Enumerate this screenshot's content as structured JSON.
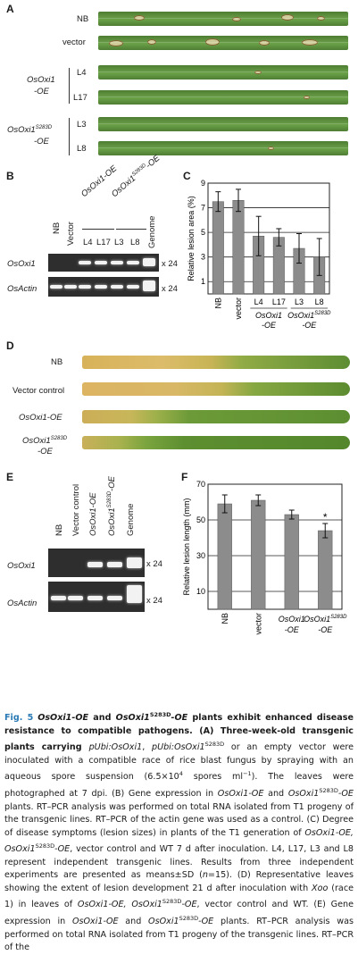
{
  "panel_letters": [
    "A",
    "B",
    "C",
    "D",
    "E",
    "F"
  ],
  "panelA": {
    "rows": [
      {
        "label": "NB"
      },
      {
        "label": "vector"
      },
      {
        "label": "L4"
      },
      {
        "label": "L17"
      },
      {
        "label": "L3"
      },
      {
        "label": "L8"
      }
    ],
    "group1": [
      "OsOxi1",
      "-OE"
    ],
    "group2_main": "OsOxi1",
    "group2_sup": "S283D",
    "group2_suffix": "-OE"
  },
  "panelB": {
    "group_oe": "OsOxi1-OE",
    "group_s283d_main": "OsOxi1",
    "group_s283d_sup": "S283D",
    "group_s283d_suffix": "-OE",
    "lanes": [
      "NB",
      "Vector",
      "L4",
      "L17",
      "L3",
      "L8",
      "Genome"
    ],
    "gene1": "OsOxi1",
    "gene2": "OsActin",
    "cycles1": "x 24",
    "cycles2": "x 24"
  },
  "panelE": {
    "lanes": [
      "NB",
      "Vector control",
      "OsOxi1-OE",
      "OsOxi1S283D-OE",
      "Genome"
    ],
    "gene1": "OsOxi1",
    "gene2": "OsActin",
    "cycles1": "x 24",
    "cycles2": "x 24"
  },
  "panelD": {
    "rows": [
      {
        "label": "NB"
      },
      {
        "label": "Vector control"
      },
      {
        "label": "OsOxi1-OE"
      },
      {
        "label_main": "OsOxi1",
        "label_sup": "S283D",
        "label_suffix": "-OE"
      }
    ]
  },
  "chart_data": [
    {
      "type": "bar",
      "panel": "C",
      "categories": [
        "NB",
        "vector",
        "L4",
        "L17",
        "L3",
        "L8"
      ],
      "values": [
        7.5,
        7.6,
        4.7,
        4.6,
        3.7,
        3.0
      ],
      "errors": [
        0.8,
        0.9,
        1.6,
        0.7,
        1.2,
        1.5
      ],
      "ylabel": "Relative lesion area (%)",
      "yticks": [
        1,
        3,
        5,
        7,
        9
      ],
      "ylim": [
        0,
        9
      ],
      "group_labels": [
        {
          "main": "OsOxi1",
          "suffix": "-OE"
        },
        {
          "main": "OsOxi1",
          "sup": "S283D",
          "suffix": "-OE"
        }
      ],
      "grid": "horizontal",
      "bar_color": "#8c8c8c"
    },
    {
      "type": "bar",
      "panel": "F",
      "categories": [
        "NB",
        "vector",
        "OsOxi1-OE",
        "OsOxi1S283D-OE"
      ],
      "category_display": [
        {
          "main": "NB"
        },
        {
          "main": "vector"
        },
        {
          "main": "OsOxi1",
          "suffix": "-OE"
        },
        {
          "main": "OsOxi1",
          "sup": "S283D",
          "suffix": "-OE"
        }
      ],
      "values": [
        59,
        61,
        53,
        44
      ],
      "errors": [
        5,
        3,
        2.5,
        4
      ],
      "ylabel": "Relative lesion length (mm)",
      "yticks": [
        10,
        30,
        50,
        70
      ],
      "ylim": [
        0,
        70
      ],
      "annotations": [
        {
          "category_index": 3,
          "text": "*"
        }
      ],
      "grid": "horizontal",
      "bar_color": "#8c8c8c"
    }
  ],
  "caption": {
    "fig": "Fig. 5",
    "seg1_i": "OsOxi1-OE",
    "seg2": " and ",
    "seg3_i": "OsOxi1",
    "seg3_sup": "S283D",
    "seg4_i": "-OE",
    "seg5": " plants exhibit enhanced disease resistance to compatible pathogens. (A) Three-week-old transgenic plants carrying ",
    "seg6_i": "pUbi:OsOxi1",
    "seg7": ", ",
    "seg8_i": "pUbi:OsOxi1",
    "seg8_sup": "S283D",
    "seg9": " or an empty vector were inoculated with a compatible race of rice blast fungus by spraying with an aqueous spore suspension (6.5×10",
    "seg9_sup": "4",
    "seg10": " spores ml",
    "seg10_sup": "−1",
    "seg11": "). The leaves were photographed at 7 dpi. (B) Gene expression in ",
    "seg12_i": "OsOxi1-OE",
    "seg13": " and ",
    "seg14_i": "OsOxi1",
    "seg14_sup": "S283D",
    "seg15_i": "-OE",
    "seg16": " plants. RT–PCR analysis was performed on total RNA isolated from T1 progeny of the transgenic lines. RT–PCR of the actin gene was used as a control. (C) Degree of disease symptoms (lesion sizes) in plants of the T1 generation of ",
    "seg17_i": "OsOxi1-OE, OsOxi1",
    "seg17_sup": "S283D",
    "seg18_i": "-OE",
    "seg19": ", vector control and WT 7 d after inoculation. L4, L17, L3 and L8 represent independent transgenic lines. Results from three independent experiments are presented as means±SD (",
    "seg20_i": "n",
    "seg21": "=15). (D) Representative leaves showing the extent of lesion development 21 d after inoculation with ",
    "seg22_i": "Xoo",
    "seg23": " (race 1) in leaves of ",
    "seg24_i": "OsOxi1-OE, OsOxi1",
    "seg24_sup": "S283D",
    "seg25_i": "-OE",
    "seg26": ", vector control and WT. (E) Gene expression in ",
    "seg27_i": "OsOxi1-OE",
    "seg28": " and ",
    "seg29_i": "OsOxi1",
    "seg29_sup": "S283D",
    "seg30_i": "-OE",
    "seg31": " plants. RT–PCR analysis was performed on total RNA isolated from T1 progeny of the transgenic lines. RT–PCR of the"
  }
}
